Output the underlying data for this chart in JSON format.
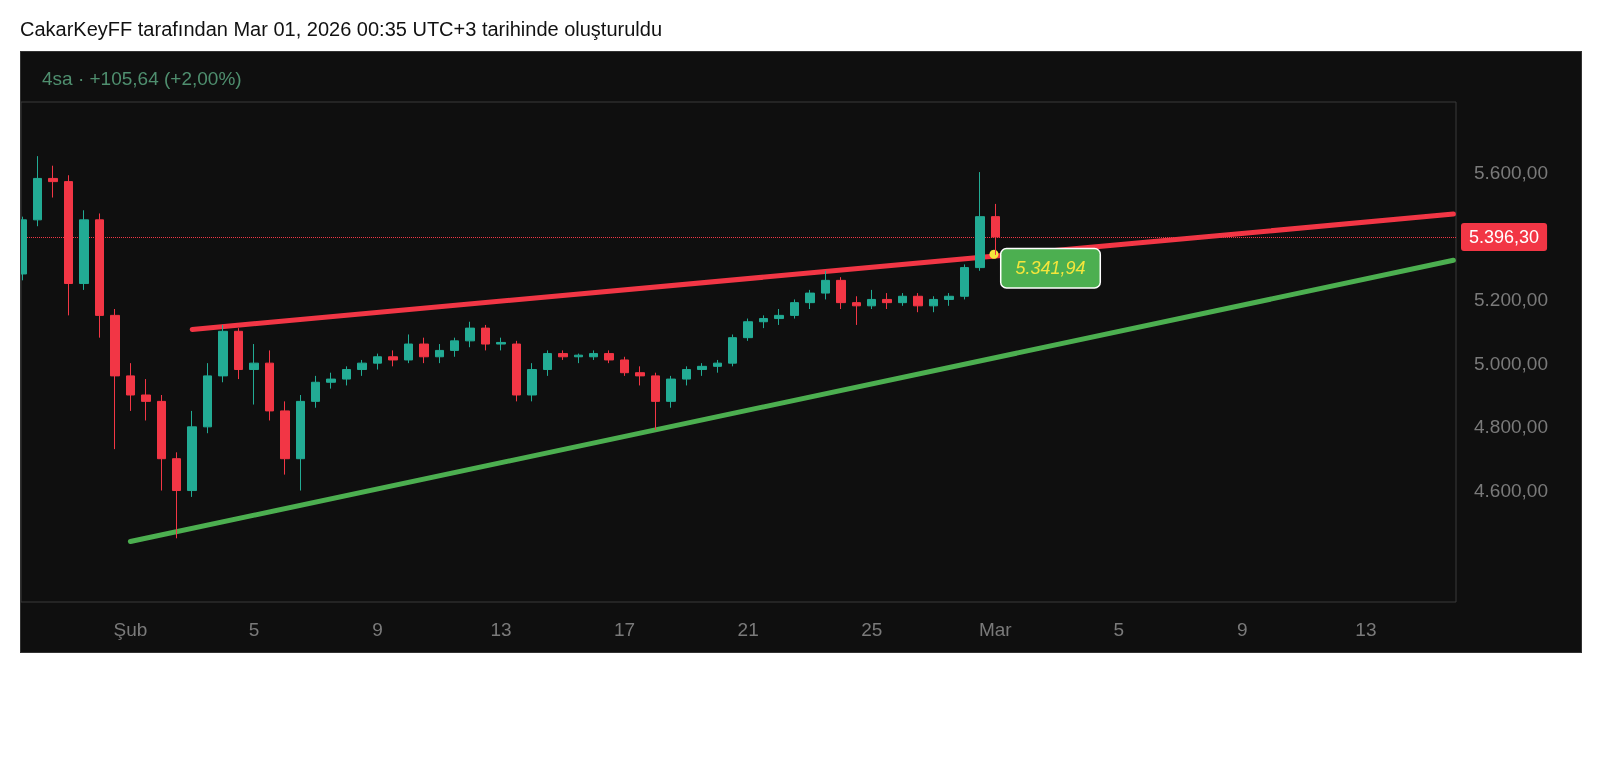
{
  "chart_data": {
    "type": "candlestick",
    "title": "CakarKeyFF tarafından Mar 01, 2026 00:35 UTC+3 tarihinde oluşturuldu",
    "subtitle": "4sa · +105,64 (+2,00%)",
    "xlim": [
      "2026-01-28T11:00",
      "2026-03-15T22:00"
    ],
    "xticks": [
      {
        "value": "2026-02-01",
        "label": "Şub"
      },
      {
        "value": "2026-02-05",
        "label": "5"
      },
      {
        "value": "2026-02-09",
        "label": "9"
      },
      {
        "value": "2026-02-13",
        "label": "13"
      },
      {
        "value": "2026-02-17",
        "label": "17"
      },
      {
        "value": "2026-02-21",
        "label": "21"
      },
      {
        "value": "2026-02-25",
        "label": "25"
      },
      {
        "value": "2026-03-01",
        "label": "Mar"
      },
      {
        "value": "2026-03-05",
        "label": "5"
      },
      {
        "value": "2026-03-09",
        "label": "9"
      },
      {
        "value": "2026-03-13",
        "label": "13"
      }
    ],
    "ylim": [
      4250,
      5820
    ],
    "yticks": [
      {
        "value": 4600,
        "label": "4.600,00"
      },
      {
        "value": 4800,
        "label": "4.800,00"
      },
      {
        "value": 5000,
        "label": "5.000,00"
      },
      {
        "value": 5200,
        "label": "5.200,00"
      },
      {
        "value": 5400,
        "label": null
      },
      {
        "value": 5600,
        "label": "5.600,00"
      }
    ],
    "grid": false,
    "series": [
      {
        "x": [
          "2026-01-28T12:00",
          "2026-01-29T00:00",
          "2026-01-29T12:00",
          "2026-01-30T00:00",
          "2026-01-30T12:00",
          "2026-01-31T00:00",
          "2026-01-31T12:00",
          "2026-02-01T00:00",
          "2026-02-01T12:00",
          "2026-02-02T00:00",
          "2026-02-02T12:00",
          "2026-02-03T00:00",
          "2026-02-03T12:00",
          "2026-02-04T00:00",
          "2026-02-04T12:00",
          "2026-02-05T00:00",
          "2026-02-05T12:00",
          "2026-02-06T00:00",
          "2026-02-06T12:00",
          "2026-02-07T00:00",
          "2026-02-07T12:00",
          "2026-02-08T00:00",
          "2026-02-08T12:00",
          "2026-02-09T00:00",
          "2026-02-09T12:00",
          "2026-02-10T00:00",
          "2026-02-10T12:00",
          "2026-02-11T00:00",
          "2026-02-11T12:00",
          "2026-02-12T00:00",
          "2026-02-12T12:00",
          "2026-02-13T00:00",
          "2026-02-13T12:00",
          "2026-02-14T00:00",
          "2026-02-14T12:00",
          "2026-02-15T00:00",
          "2026-02-15T12:00",
          "2026-02-16T00:00",
          "2026-02-16T12:00",
          "2026-02-17T00:00",
          "2026-02-17T12:00",
          "2026-02-18T00:00",
          "2026-02-18T12:00",
          "2026-02-19T00:00",
          "2026-02-19T12:00",
          "2026-02-20T00:00",
          "2026-02-20T12:00",
          "2026-02-21T00:00",
          "2026-02-21T12:00",
          "2026-02-22T00:00",
          "2026-02-22T12:00",
          "2026-02-23T00:00",
          "2026-02-23T12:00",
          "2026-02-24T00:00",
          "2026-02-24T12:00",
          "2026-02-25T00:00",
          "2026-02-25T12:00",
          "2026-02-26T00:00",
          "2026-02-26T12:00",
          "2026-02-27T00:00",
          "2026-02-27T12:00",
          "2026-02-28T00:00",
          "2026-02-28T12:00",
          "2026-03-01T00:00"
        ],
        "ohlc": [
          [
            5280,
            5460,
            5260,
            5450
          ],
          [
            5450,
            5650,
            5430,
            5580
          ],
          [
            5580,
            5620,
            5520,
            5570
          ],
          [
            5570,
            5590,
            5150,
            5250
          ],
          [
            5250,
            5480,
            5230,
            5450
          ],
          [
            5450,
            5470,
            5080,
            5150
          ],
          [
            5150,
            5170,
            4730,
            4960
          ],
          [
            4960,
            5000,
            4850,
            4900
          ],
          [
            4900,
            4950,
            4820,
            4880
          ],
          [
            4880,
            4900,
            4600,
            4700
          ],
          [
            4700,
            4720,
            4450,
            4600
          ],
          [
            4600,
            4850,
            4580,
            4800
          ],
          [
            4800,
            5000,
            4780,
            4960
          ],
          [
            4960,
            5120,
            4940,
            5100
          ],
          [
            5100,
            5110,
            4950,
            4980
          ],
          [
            4980,
            5060,
            4870,
            5000
          ],
          [
            5000,
            5040,
            4820,
            4850
          ],
          [
            4850,
            4880,
            4650,
            4700
          ],
          [
            4700,
            4900,
            4600,
            4880
          ],
          [
            4880,
            4960,
            4860,
            4940
          ],
          [
            4940,
            4970,
            4920,
            4950
          ],
          [
            4950,
            4990,
            4930,
            4980
          ],
          [
            4980,
            5010,
            4960,
            5000
          ],
          [
            5000,
            5030,
            4980,
            5020
          ],
          [
            5020,
            5040,
            4990,
            5010
          ],
          [
            5010,
            5090,
            5000,
            5060
          ],
          [
            5060,
            5080,
            5000,
            5020
          ],
          [
            5020,
            5060,
            5000,
            5040
          ],
          [
            5040,
            5080,
            5020,
            5070
          ],
          [
            5070,
            5130,
            5050,
            5110
          ],
          [
            5110,
            5120,
            5040,
            5060
          ],
          [
            5060,
            5080,
            5040,
            5065
          ],
          [
            5060,
            5070,
            4880,
            4900
          ],
          [
            4900,
            5000,
            4880,
            4980
          ],
          [
            4980,
            5040,
            4960,
            5030
          ],
          [
            5030,
            5040,
            5010,
            5020
          ],
          [
            5020,
            5030,
            5000,
            5025
          ],
          [
            5020,
            5040,
            5010,
            5030
          ],
          [
            5030,
            5040,
            5000,
            5010
          ],
          [
            5010,
            5020,
            4960,
            4970
          ],
          [
            4970,
            4990,
            4930,
            4960
          ],
          [
            4960,
            4970,
            4790,
            4880
          ],
          [
            4880,
            4960,
            4860,
            4950
          ],
          [
            4950,
            4990,
            4930,
            4980
          ],
          [
            4980,
            5000,
            4960,
            4990
          ],
          [
            4990,
            5010,
            4970,
            5000
          ],
          [
            5000,
            5090,
            4990,
            5080
          ],
          [
            5080,
            5140,
            5070,
            5130
          ],
          [
            5130,
            5150,
            5110,
            5140
          ],
          [
            5140,
            5170,
            5120,
            5150
          ],
          [
            5150,
            5200,
            5140,
            5190
          ],
          [
            5190,
            5230,
            5170,
            5220
          ],
          [
            5220,
            5290,
            5200,
            5260
          ],
          [
            5260,
            5270,
            5170,
            5190
          ],
          [
            5190,
            5210,
            5120,
            5180
          ],
          [
            5180,
            5230,
            5170,
            5200
          ],
          [
            5200,
            5220,
            5170,
            5190
          ],
          [
            5190,
            5220,
            5180,
            5210
          ],
          [
            5210,
            5220,
            5160,
            5180
          ],
          [
            5180,
            5210,
            5160,
            5200
          ],
          [
            5200,
            5220,
            5180,
            5210
          ],
          [
            5210,
            5310,
            5200,
            5300
          ],
          [
            5300,
            5600,
            5290,
            5460
          ],
          [
            5460,
            5500,
            5340,
            5396.3
          ]
        ]
      },
      {
        "type": "line",
        "color": "#f23645",
        "x": [
          "2026-02-03T00:00",
          "2026-03-15T20:00"
        ],
        "values": [
          5106,
          5468
        ]
      },
      {
        "type": "line",
        "color": "#4caf50",
        "x": [
          "2026-02-01T00:00",
          "2026-03-15T20:00"
        ],
        "values": [
          4440,
          5323
        ]
      }
    ],
    "ref_lines": [
      {
        "axis": "y",
        "value": 5396.3,
        "label": "5.396,30",
        "color": "#f23645",
        "line_style": "dotted"
      }
    ],
    "annotations": [
      {
        "text": "5.341,94",
        "x": "2026-02-28T23:00",
        "y": 5341.94
      }
    ]
  }
}
